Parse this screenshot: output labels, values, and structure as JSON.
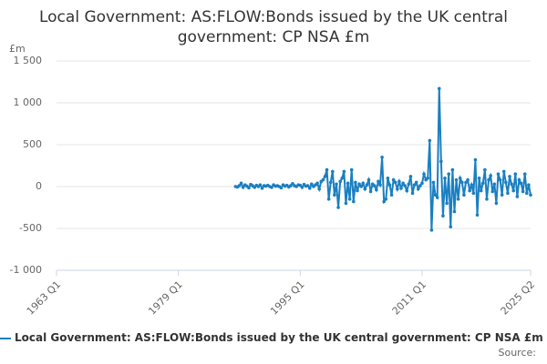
{
  "chart_data": {
    "type": "line",
    "title": "Local Government: AS:FLOW:Bonds issued by the UK central government: CP NSA £m",
    "y_unit": "£m",
    "source": "Source:",
    "xlim": [
      1963,
      2025.25
    ],
    "xticks": [
      {
        "value": 1963,
        "label": "1963 Q1"
      },
      {
        "value": 1979,
        "label": "1979 Q1"
      },
      {
        "value": 1995,
        "label": "1995 Q1"
      },
      {
        "value": 2011,
        "label": "2011 Q1"
      },
      {
        "value": 2025.25,
        "label": "2025 Q2"
      }
    ],
    "ylim": [
      -1000,
      1500
    ],
    "yticks": [
      {
        "value": -1000,
        "label": "-1 000"
      },
      -500,
      0,
      500,
      {
        "value": 1000,
        "label": "1 000"
      },
      {
        "value": 1500,
        "label": "1 500"
      }
    ],
    "grid": true,
    "x": [
      1986.5,
      1986.75,
      1987,
      1987.25,
      1987.5,
      1987.75,
      1988,
      1988.25,
      1988.5,
      1988.75,
      1989,
      1989.25,
      1989.5,
      1989.75,
      1990,
      1990.25,
      1990.5,
      1990.75,
      1991,
      1991.25,
      1991.5,
      1991.75,
      1992,
      1992.25,
      1992.5,
      1992.75,
      1993,
      1993.25,
      1993.5,
      1993.75,
      1994,
      1994.25,
      1994.5,
      1994.75,
      1995,
      1995.25,
      1995.5,
      1995.75,
      1996,
      1996.25,
      1996.5,
      1996.75,
      1997,
      1997.25,
      1997.5,
      1997.75,
      1998,
      1998.25,
      1998.5,
      1998.75,
      1999,
      1999.25,
      1999.5,
      1999.75,
      2000,
      2000.25,
      2000.5,
      2000.75,
      2001,
      2001.25,
      2001.5,
      2001.75,
      2002,
      2002.25,
      2002.5,
      2002.75,
      2003,
      2003.25,
      2003.5,
      2003.75,
      2004,
      2004.25,
      2004.5,
      2004.75,
      2005,
      2005.25,
      2005.5,
      2005.75,
      2006,
      2006.25,
      2006.5,
      2006.75,
      2007,
      2007.25,
      2007.5,
      2007.75,
      2008,
      2008.25,
      2008.5,
      2008.75,
      2009,
      2009.25,
      2009.5,
      2009.75,
      2010,
      2010.25,
      2010.5,
      2010.75,
      2011,
      2011.25,
      2011.5,
      2011.75,
      2012,
      2012.25,
      2012.5,
      2012.75,
      2013,
      2013.25,
      2013.5,
      2013.75,
      2014,
      2014.25,
      2014.5,
      2014.75,
      2015,
      2015.25,
      2015.5,
      2015.75,
      2016,
      2016.25,
      2016.5,
      2016.75,
      2017,
      2017.25,
      2017.5,
      2017.75,
      2018,
      2018.25,
      2018.5,
      2018.75,
      2019,
      2019.25,
      2019.5,
      2019.75,
      2020,
      2020.25,
      2020.5,
      2020.75,
      2021,
      2021.25,
      2021.5,
      2021.75,
      2022,
      2022.25,
      2022.5,
      2022.75,
      2023,
      2023.25,
      2023.5,
      2023.75,
      2024,
      2024.25,
      2024.5,
      2024.75,
      2025,
      2025.25
    ],
    "series": [
      {
        "name": "Local Government: AS:FLOW:Bonds issued by the UK central government: CP NSA £m",
        "color": "#1a7fc1",
        "values": [
          0,
          -5,
          10,
          40,
          -10,
          20,
          5,
          -15,
          25,
          10,
          -10,
          15,
          0,
          20,
          -20,
          10,
          5,
          15,
          0,
          -10,
          20,
          5,
          10,
          0,
          -15,
          20,
          5,
          15,
          -5,
          10,
          35,
          10,
          0,
          20,
          15,
          -10,
          25,
          5,
          10,
          -20,
          30,
          0,
          20,
          40,
          -30,
          60,
          80,
          120,
          200,
          -150,
          50,
          180,
          -100,
          30,
          -250,
          60,
          100,
          180,
          -200,
          40,
          -150,
          200,
          -180,
          50,
          -50,
          30,
          0,
          40,
          -30,
          20,
          80,
          -60,
          30,
          10,
          -40,
          60,
          20,
          350,
          -180,
          -150,
          100,
          20,
          -100,
          80,
          50,
          -30,
          60,
          -20,
          40,
          10,
          -50,
          30,
          120,
          -80,
          20,
          50,
          -30,
          10,
          40,
          150,
          80,
          100,
          550,
          -520,
          50,
          -100,
          -130,
          1170,
          300,
          -350,
          100,
          -200,
          150,
          -480,
          200,
          -300,
          80,
          -150,
          100,
          50,
          -100,
          50,
          80,
          -50,
          20,
          -80,
          320,
          -340,
          100,
          -50,
          40,
          200,
          -150,
          80,
          130,
          -60,
          30,
          -200,
          150,
          80,
          -100,
          180,
          50,
          -80,
          120,
          30,
          -50,
          150,
          -120,
          80,
          40,
          -60,
          150,
          -80,
          20,
          -100
        ]
      }
    ]
  }
}
